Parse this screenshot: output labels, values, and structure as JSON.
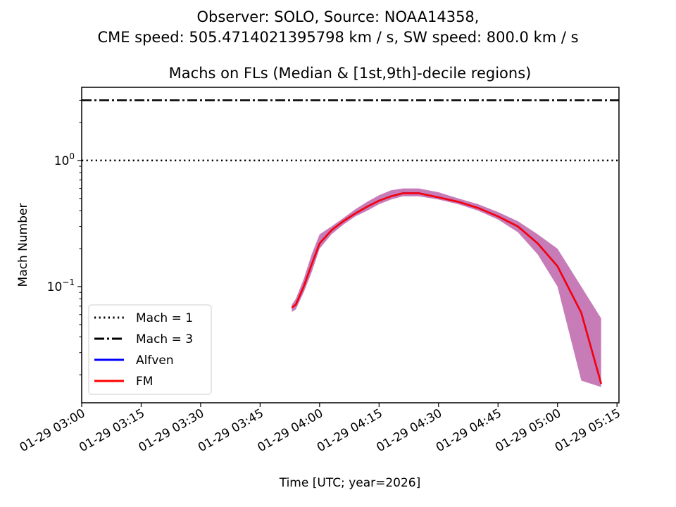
{
  "figure": {
    "title_line1": "Observer: SOLO, Source: NOAA14358,",
    "title_line2": "CME speed: 505.4714021395798 km / s, SW speed: 800.0 km / s"
  },
  "chart_data": {
    "type": "line",
    "title": "Machs on FLs (Median & [1st,9th]-decile regions)",
    "xlabel": "Time [UTC; year=2026]",
    "ylabel": "Mach Number",
    "yscale": "log",
    "ylim": [
      0.012,
      3.8
    ],
    "xlim": [
      "2026-01-29 03:00",
      "2026-01-29 05:15"
    ],
    "x_tick_labels": [
      "01-29 03:00",
      "01-29 03:15",
      "01-29 03:30",
      "01-29 03:45",
      "01-29 04:00",
      "01-29 04:15",
      "01-29 04:30",
      "01-29 04:45",
      "01-29 05:00",
      "01-29 05:15"
    ],
    "y_tick_labels": [
      {
        "value": 1.0,
        "base": "10",
        "exp": "0"
      },
      {
        "value": 0.1,
        "base": "10",
        "exp": "−1"
      }
    ],
    "grid": false,
    "legend_position": "lower-left",
    "reference_lines": [
      {
        "name": "Mach = 1",
        "y": 1.0,
        "style": "dotted",
        "color": "#000000"
      },
      {
        "name": "Mach = 3",
        "y": 3.0,
        "style": "dashdot",
        "color": "#000000"
      }
    ],
    "x": [
      "2026-01-29 03:53",
      "2026-01-29 03:54",
      "2026-01-29 03:56",
      "2026-01-29 03:58",
      "2026-01-29 04:00",
      "2026-01-29 04:03",
      "2026-01-29 04:06",
      "2026-01-29 04:09",
      "2026-01-29 04:12",
      "2026-01-29 04:15",
      "2026-01-29 04:18",
      "2026-01-29 04:21",
      "2026-01-29 04:25",
      "2026-01-29 04:30",
      "2026-01-29 04:35",
      "2026-01-29 04:40",
      "2026-01-29 04:45",
      "2026-01-29 04:50",
      "2026-01-29 04:55",
      "2026-01-29 05:00",
      "2026-01-29 05:06",
      "2026-01-29 05:11"
    ],
    "series": [
      {
        "name": "Alfven",
        "color": "#0000ff",
        "values": [
          0.068,
          0.072,
          0.1,
          0.15,
          0.22,
          0.28,
          0.33,
          0.38,
          0.43,
          0.48,
          0.52,
          0.55,
          0.55,
          0.51,
          0.47,
          0.42,
          0.36,
          0.3,
          0.22,
          0.145,
          0.062,
          0.017
        ]
      },
      {
        "name": "FM",
        "color": "#ff0000",
        "values": [
          0.068,
          0.072,
          0.1,
          0.15,
          0.22,
          0.28,
          0.33,
          0.38,
          0.43,
          0.48,
          0.52,
          0.55,
          0.55,
          0.51,
          0.47,
          0.42,
          0.36,
          0.3,
          0.22,
          0.145,
          0.062,
          0.017
        ]
      }
    ],
    "decile_band": {
      "color": "#c77cb8",
      "upper": [
        0.072,
        0.08,
        0.115,
        0.18,
        0.26,
        0.3,
        0.35,
        0.41,
        0.47,
        0.53,
        0.58,
        0.6,
        0.6,
        0.56,
        0.5,
        0.45,
        0.39,
        0.33,
        0.26,
        0.2,
        0.1,
        0.056
      ],
      "lower": [
        0.063,
        0.066,
        0.09,
        0.13,
        0.2,
        0.26,
        0.31,
        0.36,
        0.4,
        0.45,
        0.49,
        0.52,
        0.52,
        0.49,
        0.45,
        0.4,
        0.34,
        0.27,
        0.18,
        0.1,
        0.018,
        0.016
      ]
    }
  }
}
